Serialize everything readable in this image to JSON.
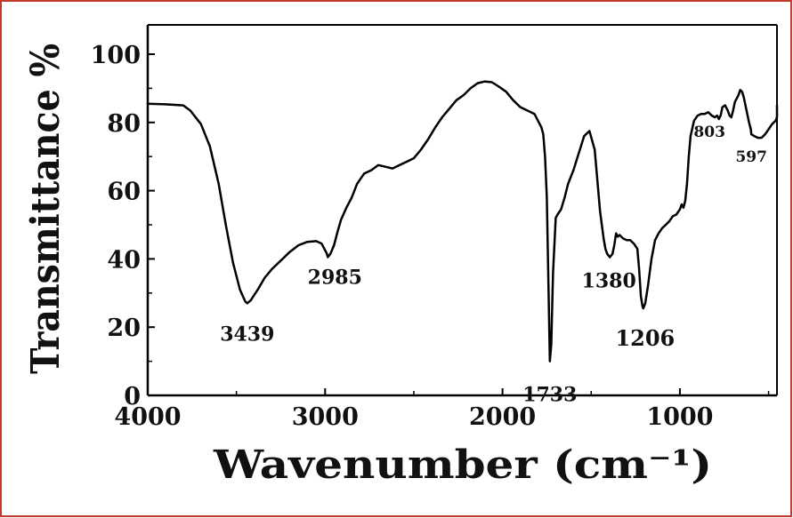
{
  "chart_data": {
    "type": "line",
    "xlabel": "Wavenumber (cm⁻¹)",
    "ylabel": "Transmittance %",
    "xlim": [
      4000,
      400
    ],
    "ylim": [
      0,
      105
    ],
    "x_ticks": [
      "4000",
      "3000",
      "2000",
      "1000"
    ],
    "x_tick_values": [
      4000,
      3000,
      2000,
      1000
    ],
    "y_ticks": [
      "0",
      "20",
      "40",
      "60",
      "80",
      "100"
    ],
    "y_tick_values": [
      0,
      20,
      40,
      60,
      80,
      100
    ],
    "frame_color": "#c0392b",
    "line_color": "#000000",
    "series": [
      {
        "x": [
          4000,
          3900,
          3800,
          3760,
          3700,
          3650,
          3600,
          3560,
          3520,
          3480,
          3450,
          3439,
          3420,
          3380,
          3340,
          3300,
          3250,
          3200,
          3150,
          3100,
          3050,
          3020,
          2990,
          2985,
          2970,
          2950,
          2930,
          2910,
          2880,
          2850,
          2820,
          2780,
          2740,
          2700,
          2660,
          2620,
          2580,
          2540,
          2500,
          2460,
          2420,
          2380,
          2340,
          2300,
          2260,
          2220,
          2180,
          2140,
          2100,
          2060,
          2020,
          1980,
          1940,
          1900,
          1860,
          1820,
          1800,
          1780,
          1770,
          1760,
          1750,
          1740,
          1733,
          1725,
          1715,
          1700,
          1690,
          1670,
          1650,
          1630,
          1600,
          1570,
          1540,
          1510,
          1480,
          1460,
          1450,
          1440,
          1430,
          1420,
          1410,
          1395,
          1380,
          1370,
          1360,
          1350,
          1340,
          1320,
          1300,
          1280,
          1260,
          1240,
          1230,
          1220,
          1210,
          1206,
          1195,
          1180,
          1160,
          1140,
          1120,
          1100,
          1080,
          1060,
          1040,
          1020,
          1000,
          990,
          980,
          970,
          960,
          950,
          940,
          920,
          900,
          880,
          860,
          840,
          820,
          803,
          790,
          780,
          770,
          760,
          745,
          730,
          720,
          710,
          700,
          690,
          680,
          670,
          660,
          650,
          640,
          630,
          620,
          610,
          600,
          597,
          580,
          560,
          540,
          520,
          500,
          480,
          460,
          440,
          420,
          400
        ],
        "y": [
          85.5,
          85.3,
          85.0,
          83.5,
          79.5,
          73.0,
          62.0,
          50.0,
          39.0,
          31.0,
          27.5,
          27.0,
          27.8,
          31.0,
          34.5,
          37.0,
          39.5,
          42.0,
          44.0,
          45.0,
          45.2,
          44.5,
          41.5,
          40.5,
          41.5,
          44.0,
          48.0,
          51.5,
          55.0,
          58.0,
          62.0,
          65.0,
          66.0,
          67.5,
          67.0,
          66.5,
          67.5,
          68.5,
          69.5,
          72.0,
          75.0,
          78.5,
          81.5,
          84.0,
          86.5,
          88.0,
          90.0,
          91.5,
          92.0,
          91.8,
          90.5,
          89.0,
          86.5,
          84.5,
          83.5,
          82.5,
          80.5,
          78.5,
          76.5,
          70.0,
          58.0,
          30.0,
          10.0,
          15.0,
          36.0,
          52.0,
          53.0,
          54.5,
          58.0,
          62.0,
          66.0,
          71.0,
          76.0,
          77.5,
          72.0,
          60.0,
          54.0,
          50.0,
          46.0,
          43.0,
          41.5,
          40.5,
          41.5,
          44.0,
          47.5,
          46.5,
          47.0,
          46.0,
          45.5,
          45.5,
          44.5,
          43.0,
          37.0,
          29.0,
          26.0,
          25.5,
          27.0,
          32.0,
          40.0,
          45.5,
          47.5,
          49.0,
          50.0,
          51.0,
          52.5,
          53.0,
          54.5,
          56.0,
          55.0,
          57.0,
          62.0,
          70.0,
          76.0,
          80.5,
          82.0,
          82.5,
          82.5,
          83.0,
          82.0,
          81.5,
          82.0,
          81.0,
          82.0,
          84.5,
          85.0,
          83.5,
          82.0,
          81.5,
          83.5,
          86.0,
          87.0,
          88.0,
          89.5,
          89.0,
          87.5,
          85.0,
          82.5,
          80.0,
          78.0,
          76.5,
          76.0,
          75.5,
          75.5,
          76.5,
          78.0,
          79.5,
          80.5,
          81.5,
          83.0,
          85.0
        ]
      }
    ],
    "annotations": [
      {
        "text": "3439",
        "x": 3439,
        "y": 27
      },
      {
        "text": "2985",
        "x": 2985,
        "y": 40.5
      },
      {
        "text": "1733",
        "x": 1733,
        "y": 10
      },
      {
        "text": "1380",
        "x": 1380,
        "y": 40.5
      },
      {
        "text": "1206",
        "x": 1206,
        "y": 25.5
      },
      {
        "text": "803",
        "x": 803,
        "y": 81
      },
      {
        "text": "597",
        "x": 597,
        "y": 75.5
      }
    ]
  }
}
